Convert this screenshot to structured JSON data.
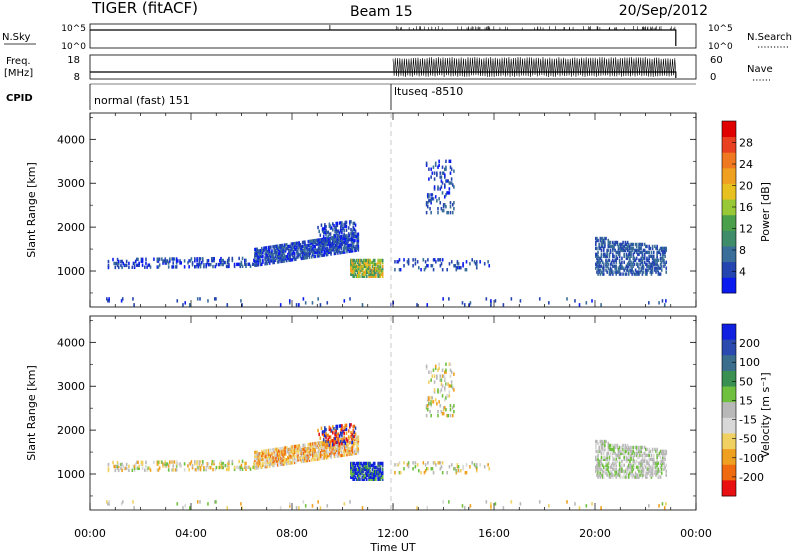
{
  "header": {
    "title": "TIGER (fitACF)",
    "beam": "Beam 15",
    "date": "20/Sep/2012"
  },
  "panels": {
    "nsky_label": "N.Sky",
    "nsearch_label": "N.Search",
    "freq_label": "Freq.",
    "freq_unit": "[MHz]",
    "nave_label": "Nave",
    "cpid_label": "CPID",
    "nsky_ticks": [
      "10^5",
      "10^0"
    ],
    "nsearch_ticks": [
      "10^5",
      "10^0"
    ],
    "freq_ticks": [
      "18",
      "8"
    ],
    "nave_ticks": [
      "60",
      "0"
    ],
    "cpid_segments": [
      {
        "start_hour": 0,
        "end_hour": 12,
        "label": "normal (fast) 151"
      },
      {
        "start_hour": 12,
        "end_hour": 23.2,
        "label": "ltuseq -8510"
      }
    ],
    "freq_low_mhz": 10.2,
    "freq_high_mhz": 10.2,
    "nave_active_after_hour": 12
  },
  "chart_data": [
    {
      "type": "scatter",
      "name": "power",
      "xlabel": "Time UT",
      "ylabel": "Slant Range [km]",
      "xlim": [
        0,
        24
      ],
      "ylim": [
        180,
        4600
      ],
      "x_ticks": [
        "00:00",
        "04:00",
        "08:00",
        "12:00",
        "16:00",
        "20:00",
        "00:00"
      ],
      "y_ticks": [
        1000,
        2000,
        3000,
        4000
      ],
      "colorbar": {
        "label": "Power [dB]",
        "ticks": [
          "4",
          "8",
          "12",
          "16",
          "20",
          "24",
          "28"
        ],
        "colors": [
          "#0a1bf0",
          "#2444b0",
          "#3a6e9a",
          "#3f8c6a",
          "#4aa04a",
          "#98c836",
          "#e8c020",
          "#f0a020",
          "#f07820",
          "#e84020",
          "#e00000"
        ]
      }
    },
    {
      "type": "scatter",
      "name": "velocity",
      "xlabel": "Time UT",
      "ylabel": "Slant Range [km]",
      "xlim": [
        0,
        24
      ],
      "ylim": [
        180,
        4600
      ],
      "x_ticks": [
        "00:00",
        "04:00",
        "08:00",
        "12:00",
        "16:00",
        "20:00",
        "00:00"
      ],
      "y_ticks": [
        1000,
        2000,
        3000,
        4000
      ],
      "colorbar": {
        "label": "Velocity [m s⁻¹]",
        "ticks": [
          "200",
          "100",
          "50",
          "15",
          "-15",
          "-50",
          "-100",
          "-200"
        ],
        "colors": [
          "#1020e0",
          "#2a4ab0",
          "#3a6e8c",
          "#3a9050",
          "#70c040",
          "#b8b8b8",
          "#d8d8d8",
          "#f0d060",
          "#f0a020",
          "#f06a10",
          "#e81010"
        ]
      }
    }
  ],
  "echo_regions": [
    {
      "t0": 0.7,
      "t1": 6.5,
      "r0": 1050,
      "r1": 1250,
      "tr0": 1080,
      "tr1": 1260,
      "density": 0.25
    },
    {
      "t0": 6.5,
      "t1": 10.6,
      "r0": 1100,
      "r1": 1500,
      "tr0": 1450,
      "tr1": 1850,
      "density": 0.7
    },
    {
      "t0": 9.0,
      "t1": 10.5,
      "r0": 1600,
      "r1": 2050,
      "tr0": 1700,
      "tr1": 2100,
      "density": 0.35
    },
    {
      "t0": 10.3,
      "t1": 11.6,
      "r0": 850,
      "r1": 1250,
      "tr0": 850,
      "tr1": 1250,
      "density": 0.8
    },
    {
      "t0": 12.0,
      "t1": 15.8,
      "r0": 1000,
      "r1": 1250,
      "tr0": 1000,
      "tr1": 1250,
      "density": 0.12
    },
    {
      "t0": 13.3,
      "t1": 14.4,
      "r0": 2300,
      "r1": 3500,
      "tr0": 2300,
      "tr1": 3500,
      "density": 0.18
    },
    {
      "t0": 20.0,
      "t1": 22.8,
      "r0": 900,
      "r1": 1750,
      "tr0": 900,
      "tr1": 1500,
      "density": 0.45
    },
    {
      "t0": 0.5,
      "t1": 23.0,
      "r0": 200,
      "r1": 350,
      "tr0": 200,
      "tr1": 350,
      "density": 0.03
    }
  ]
}
